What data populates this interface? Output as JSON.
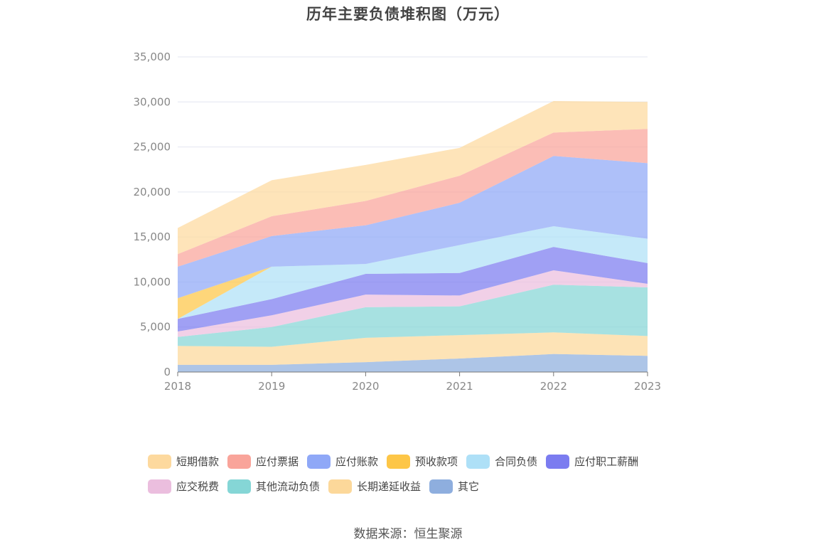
{
  "title": "历年主要负债堆积图（万元）",
  "source": "数据来源：恒生聚源",
  "chart_data": {
    "type": "area",
    "stacked": true,
    "x": [
      "2018",
      "2019",
      "2020",
      "2021",
      "2022",
      "2023"
    ],
    "ylim": [
      0,
      35000
    ],
    "yticks": [
      0,
      5000,
      10000,
      15000,
      20000,
      25000,
      30000,
      35000
    ],
    "ytick_labels": [
      "0",
      "5,000",
      "10,000",
      "15,000",
      "20,000",
      "25,000",
      "30,000",
      "35,000"
    ],
    "grid": true,
    "legend_position": "bottom",
    "series": [
      {
        "name": "其它",
        "color": "#8eaede",
        "values": [
          800,
          800,
          1100,
          1500,
          2000,
          1800
        ]
      },
      {
        "name": "长期递延收益",
        "color": "#fcd89a",
        "values": [
          2100,
          2000,
          2700,
          2600,
          2400,
          2200
        ]
      },
      {
        "name": "其他流动负债",
        "color": "#85d6d6",
        "values": [
          1000,
          2200,
          3400,
          3200,
          5300,
          5400
        ]
      },
      {
        "name": "应交税费",
        "color": "#ebbede",
        "values": [
          600,
          1300,
          1400,
          1200,
          1600,
          400
        ]
      },
      {
        "name": "应付职工薪酬",
        "color": "#7b7cf0",
        "values": [
          1400,
          1800,
          2300,
          2500,
          2600,
          2300
        ]
      },
      {
        "name": "合同负债",
        "color": "#aee0f7",
        "values": [
          0,
          3600,
          1100,
          3100,
          2300,
          2700
        ]
      },
      {
        "name": "预收款项",
        "color": "#fdc647",
        "values": [
          2300,
          0,
          0,
          0,
          0,
          0
        ]
      },
      {
        "name": "应付账款",
        "color": "#8fa8f7",
        "values": [
          3500,
          3400,
          4300,
          4700,
          7800,
          8400
        ]
      },
      {
        "name": "应付票据",
        "color": "#f9a49a",
        "values": [
          1400,
          2200,
          2700,
          3000,
          2600,
          3800
        ]
      },
      {
        "name": "短期借款",
        "color": "#fdd99e",
        "values": [
          2900,
          4000,
          4000,
          3100,
          3500,
          3000
        ]
      }
    ],
    "legend_order": [
      "短期借款",
      "应付票据",
      "应付账款",
      "预收款项",
      "合同负债",
      "应付职工薪酬",
      "应交税费",
      "其他流动负债",
      "长期递延收益",
      "其它"
    ]
  }
}
